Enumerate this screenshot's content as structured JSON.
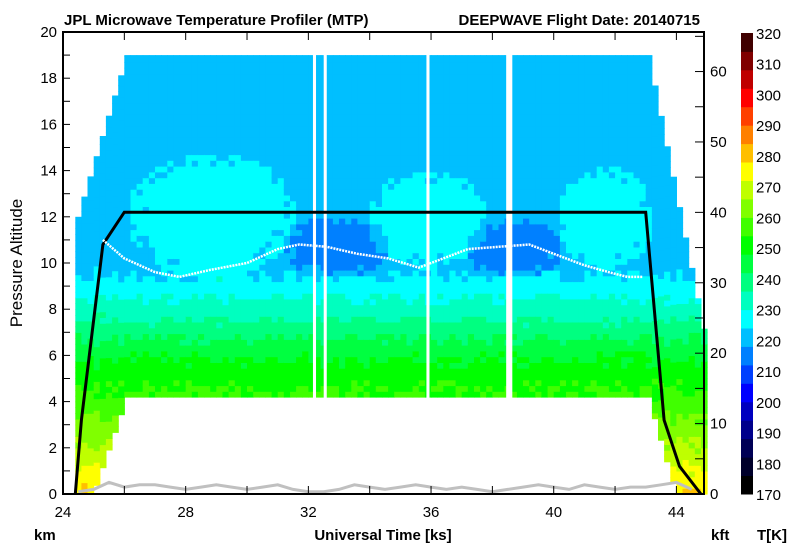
{
  "chart_data": {
    "type": "heatmap",
    "title": "JPL Microwave Temperature Profiler (MTP)",
    "subtitle": "DEEPWAVE  Flight Date: 20140715",
    "xlabel": "Universal Time [ks]",
    "ylabel": "Pressure Altitude",
    "left_unit": "km",
    "right_unit": "kft",
    "colorbar_label": "T[K]",
    "xlim": [
      24,
      44.9
    ],
    "ylim": [
      0,
      20
    ],
    "xticks": [
      24,
      28,
      32,
      36,
      40,
      44
    ],
    "yticks": [
      0,
      2,
      4,
      6,
      8,
      10,
      12,
      14,
      16,
      18,
      20
    ],
    "right_ticks": [
      0,
      10,
      20,
      30,
      40,
      50,
      60
    ],
    "colorbar": {
      "range": [
        170,
        320
      ],
      "ticks": [
        170,
        180,
        190,
        200,
        210,
        220,
        230,
        240,
        250,
        260,
        270,
        280,
        290,
        300,
        310,
        320
      ],
      "colors": [
        "#000000",
        "#00002a",
        "#000055",
        "#00008b",
        "#0000c0",
        "#0000ff",
        "#0040ff",
        "#0080ff",
        "#00bfff",
        "#00ffff",
        "#00ffbf",
        "#00ff80",
        "#00ff40",
        "#00ff00",
        "#40ff00",
        "#80ff00",
        "#bfff00",
        "#ffff00",
        "#ffbf00",
        "#ff8000",
        "#ff4000",
        "#ff0000",
        "#bf0000",
        "#800000",
        "#400000"
      ]
    },
    "temperature_profile": {
      "altitude_km": [
        0,
        1,
        2,
        3,
        4,
        5,
        6,
        7,
        8,
        9,
        10,
        12,
        19
      ],
      "temperature_K": [
        280,
        273,
        267,
        262,
        256,
        252,
        247,
        240,
        233,
        227,
        221,
        221,
        220
      ]
    },
    "temperature_anomalies": [
      {
        "time_ks": [
          26.0,
          31.5
        ],
        "altitude_km": [
          9.3,
          14.8
        ],
        "delta_K": 6
      },
      {
        "time_ks": [
          33.8,
          37.8
        ],
        "altitude_km": [
          9.8,
          14.0
        ],
        "delta_K": 6
      },
      {
        "time_ks": [
          40.0,
          43.2
        ],
        "altitude_km": [
          9.8,
          14.2
        ],
        "delta_K": 6
      },
      {
        "time_ks": [
          31.0,
          34.6
        ],
        "altitude_km": [
          9.4,
          12.0
        ],
        "delta_K": -6
      },
      {
        "time_ks": [
          37.0,
          40.2
        ],
        "altitude_km": [
          9.4,
          11.9
        ],
        "delta_K": -6
      }
    ],
    "coverage": {
      "start_ks": 24.4,
      "end_ks": 44.9,
      "top_km": 19,
      "cruise_bottom_km": 4.2,
      "gaps_ks": [
        [
          32.15,
          32.25
        ],
        [
          32.5,
          32.6
        ],
        [
          35.85,
          35.95
        ],
        [
          38.45,
          38.65
        ]
      ]
    },
    "series": [
      {
        "kind": "aircraft_altitude",
        "color": "#000000",
        "x": [
          24.4,
          24.6,
          25.3,
          26.0,
          43.0,
          43.6,
          44.1,
          44.8
        ],
        "y": [
          0,
          3.2,
          10.8,
          12.2,
          12.2,
          3.2,
          1.2,
          0
        ]
      },
      {
        "kind": "tropopause",
        "color": "#ffffff",
        "x": [
          25.3,
          26.0,
          27.0,
          27.8,
          28.8,
          30.0,
          31.0,
          31.7,
          32.6,
          33.6,
          34.6,
          35.6,
          36.4,
          37.2,
          38.2,
          39.2,
          40.2,
          41.0,
          41.8,
          42.4,
          42.9
        ],
        "y": [
          11.0,
          10.2,
          9.6,
          9.4,
          9.7,
          10.0,
          10.6,
          10.8,
          10.7,
          10.4,
          10.2,
          9.8,
          10.2,
          10.6,
          10.7,
          10.8,
          10.3,
          9.9,
          9.6,
          9.4,
          9.4
        ]
      },
      {
        "kind": "ground",
        "color": "#c0c0c0",
        "x": [
          24.5,
          25.0,
          25.5,
          26.0,
          26.5,
          27.0,
          27.5,
          28.0,
          28.5,
          29.0,
          29.5,
          30.0,
          30.5,
          31.0,
          31.5,
          32.0,
          32.5,
          33.0,
          33.5,
          34.0,
          34.5,
          35.0,
          35.5,
          36.0,
          36.5,
          37.0,
          37.5,
          38.0,
          38.5,
          39.0,
          39.5,
          40.0,
          40.5,
          41.0,
          41.5,
          42.0,
          42.5,
          43.0,
          43.5,
          44.0,
          44.5
        ],
        "y": [
          0.1,
          0.2,
          0.5,
          0.3,
          0.4,
          0.4,
          0.3,
          0.2,
          0.3,
          0.4,
          0.3,
          0.2,
          0.3,
          0.4,
          0.2,
          0.1,
          0.1,
          0.2,
          0.4,
          0.3,
          0.2,
          0.3,
          0.4,
          0.3,
          0.2,
          0.3,
          0.2,
          0.1,
          0.2,
          0.3,
          0.4,
          0.3,
          0.2,
          0.4,
          0.3,
          0.2,
          0.3,
          0.3,
          0.4,
          0.5,
          0.2
        ]
      }
    ]
  }
}
